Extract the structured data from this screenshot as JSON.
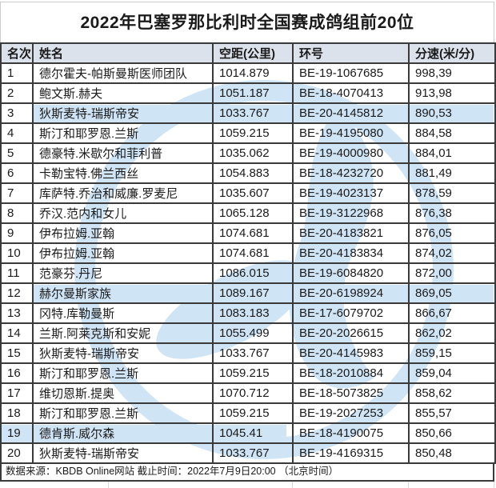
{
  "title": "2022年巴塞罗那比利时全国赛成鸽组前20位",
  "chart_data": {
    "type": "table",
    "title": "2022年巴塞罗那比利时全国赛成鸽组前20位",
    "columns": [
      "名次",
      "姓名",
      "空距(公里)",
      "环号",
      "分速(米/分)"
    ],
    "rows": [
      [
        "1",
        "德尔霍夫-帕斯曼斯医师团队",
        "1014.879",
        "BE-19-1067685",
        "998,39"
      ],
      [
        "2",
        "鲍文斯.赫夫",
        "1051.187",
        "BE-18-4070413",
        "913,98"
      ],
      [
        "3",
        "狄斯麦特-瑞斯帝安",
        "1033.767",
        "BE-20-4145812",
        "890,53"
      ],
      [
        "4",
        "斯汀和耶罗恩.兰斯",
        "1059.215",
        "BE-19-4195080",
        "884,58"
      ],
      [
        "5",
        "德豪特.米歇尔和菲利普",
        "1035.062",
        "BE-19-4000980",
        "884,01"
      ],
      [
        "6",
        "卡勒宝特.佛兰西丝",
        "1054.883",
        "BE-18-4232720",
        "881,49"
      ],
      [
        "7",
        "库萨特.乔治和威廉.罗麦尼",
        "1035.607",
        "BE-19-4023137",
        "878,59"
      ],
      [
        "8",
        "乔汉.范内和女儿",
        "1065.128",
        "BE-19-3122968",
        "876,38"
      ],
      [
        "9",
        "伊布拉姆.亚翰",
        "1074.681",
        "BE-20-4183821",
        "876,05"
      ],
      [
        "10",
        "伊布拉姆.亚翰",
        "1074.681",
        "BE-20-4183834",
        "874,02"
      ],
      [
        "11",
        "范豪芬.丹尼",
        "1086.015",
        "BE-19-6084820",
        "872,00"
      ],
      [
        "12",
        "赫尔曼斯家族",
        "1089.167",
        "BE-20-6198924",
        "869,05"
      ],
      [
        "13",
        "冈特.库勒曼斯",
        "1083.183",
        "BE-17-6079702",
        "866,67"
      ],
      [
        "14",
        "兰斯.阿莱克斯和安妮",
        "1055.499",
        "BE-20-2026615",
        "862,02"
      ],
      [
        "15",
        "狄斯麦特-瑞斯帝安",
        "1033.767",
        "BE-20-4145983",
        "859,15"
      ],
      [
        "16",
        "斯汀和耶罗恩.兰斯",
        "1059.215",
        "BE-18-2010884",
        "859,04"
      ],
      [
        "17",
        "维切恩斯.提奥",
        "1070.712",
        "BE-18-5073825",
        "858,62"
      ],
      [
        "18",
        "斯汀和耶罗恩.兰斯",
        "1059.215",
        "BE-19-2027253",
        "855,57"
      ],
      [
        "19",
        "德肯斯.威尔森",
        "1045.41",
        "BE-18-4190075",
        "850,66"
      ],
      [
        "20",
        "狄斯麦特-瑞斯帝安",
        "1033.767",
        "BE-19-4169315",
        "850,48"
      ]
    ],
    "source_note": "数据来源：KBDB Online网站  截止时间：2022年7月9日20:00 （北京时间）",
    "legend_position": "none",
    "grid": "on"
  },
  "colors": {
    "header_bg": "#dbe2eb",
    "table_border": "#3a3a3a",
    "watermark_blue": "#cfe4f5",
    "text": "#1a1a1a",
    "outer_gridline": "#cccccc"
  }
}
